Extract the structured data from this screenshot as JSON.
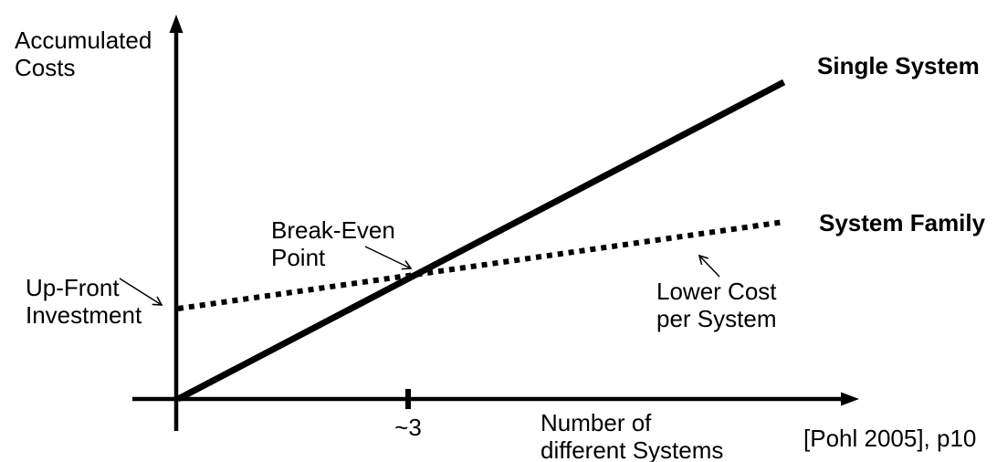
{
  "figure": {
    "background_color": "#ffffff",
    "ink_color": "#000000"
  },
  "labels": {
    "y_axis": "Accumulated\nCosts",
    "x_axis": "Number of\ndifferent Systems",
    "x_tick": "~3",
    "single_system": "Single System",
    "system_family": "System Family",
    "break_even": "Break-Even\nPoint",
    "up_front": "Up-Front\nInvestment",
    "lower_cost": "Lower Cost\nper System",
    "citation": "[Pohl 2005], p10"
  },
  "chart_data": {
    "type": "line",
    "title": "",
    "xlabel": "Number of different Systems",
    "ylabel": "Accumulated Costs",
    "x_axis": {
      "min": 0,
      "max": 8.8,
      "ticks": [
        {
          "value": 3,
          "label": "~3"
        }
      ]
    },
    "y_axis": {
      "min": 0,
      "max": 430,
      "unit": "arbitrary accumulated-cost units",
      "ticks": []
    },
    "series": [
      {
        "name": "Single System",
        "line_style": "solid",
        "x": [
          0,
          7.9
        ],
        "y": [
          0,
          347
        ]
      },
      {
        "name": "System Family",
        "line_style": "dotted",
        "x": [
          0,
          7.9
        ],
        "y": [
          99,
          194
        ]
      }
    ],
    "break_even_point": {
      "x": 3.1,
      "y": 136
    },
    "annotations": [
      {
        "text": "Break-Even Point",
        "points_at": "intersection of the two lines at about 3 systems"
      },
      {
        "text": "Up-Front Investment",
        "points_at": "System Family start value on the cost axis"
      },
      {
        "text": "Lower Cost per System",
        "points_at": "shallow slope of the System Family line"
      }
    ],
    "legend_position": "labels at right end of each line",
    "grid": false
  }
}
